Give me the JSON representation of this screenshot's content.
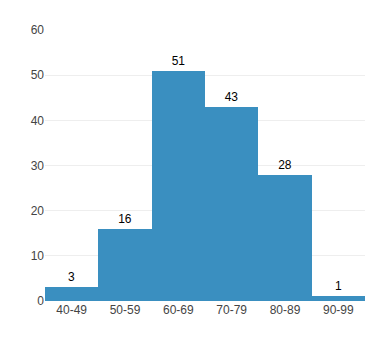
{
  "chart_data": {
    "type": "bar",
    "categories": [
      "40-49",
      "50-59",
      "60-69",
      "70-79",
      "80-89",
      "90-99"
    ],
    "values": [
      3,
      16,
      51,
      43,
      28,
      1
    ],
    "color": "#3a8fc0",
    "ylim": [
      0,
      60
    ],
    "yticks": [
      0,
      10,
      20,
      30,
      40,
      50,
      60
    ],
    "grid": true,
    "data_labels": true
  }
}
